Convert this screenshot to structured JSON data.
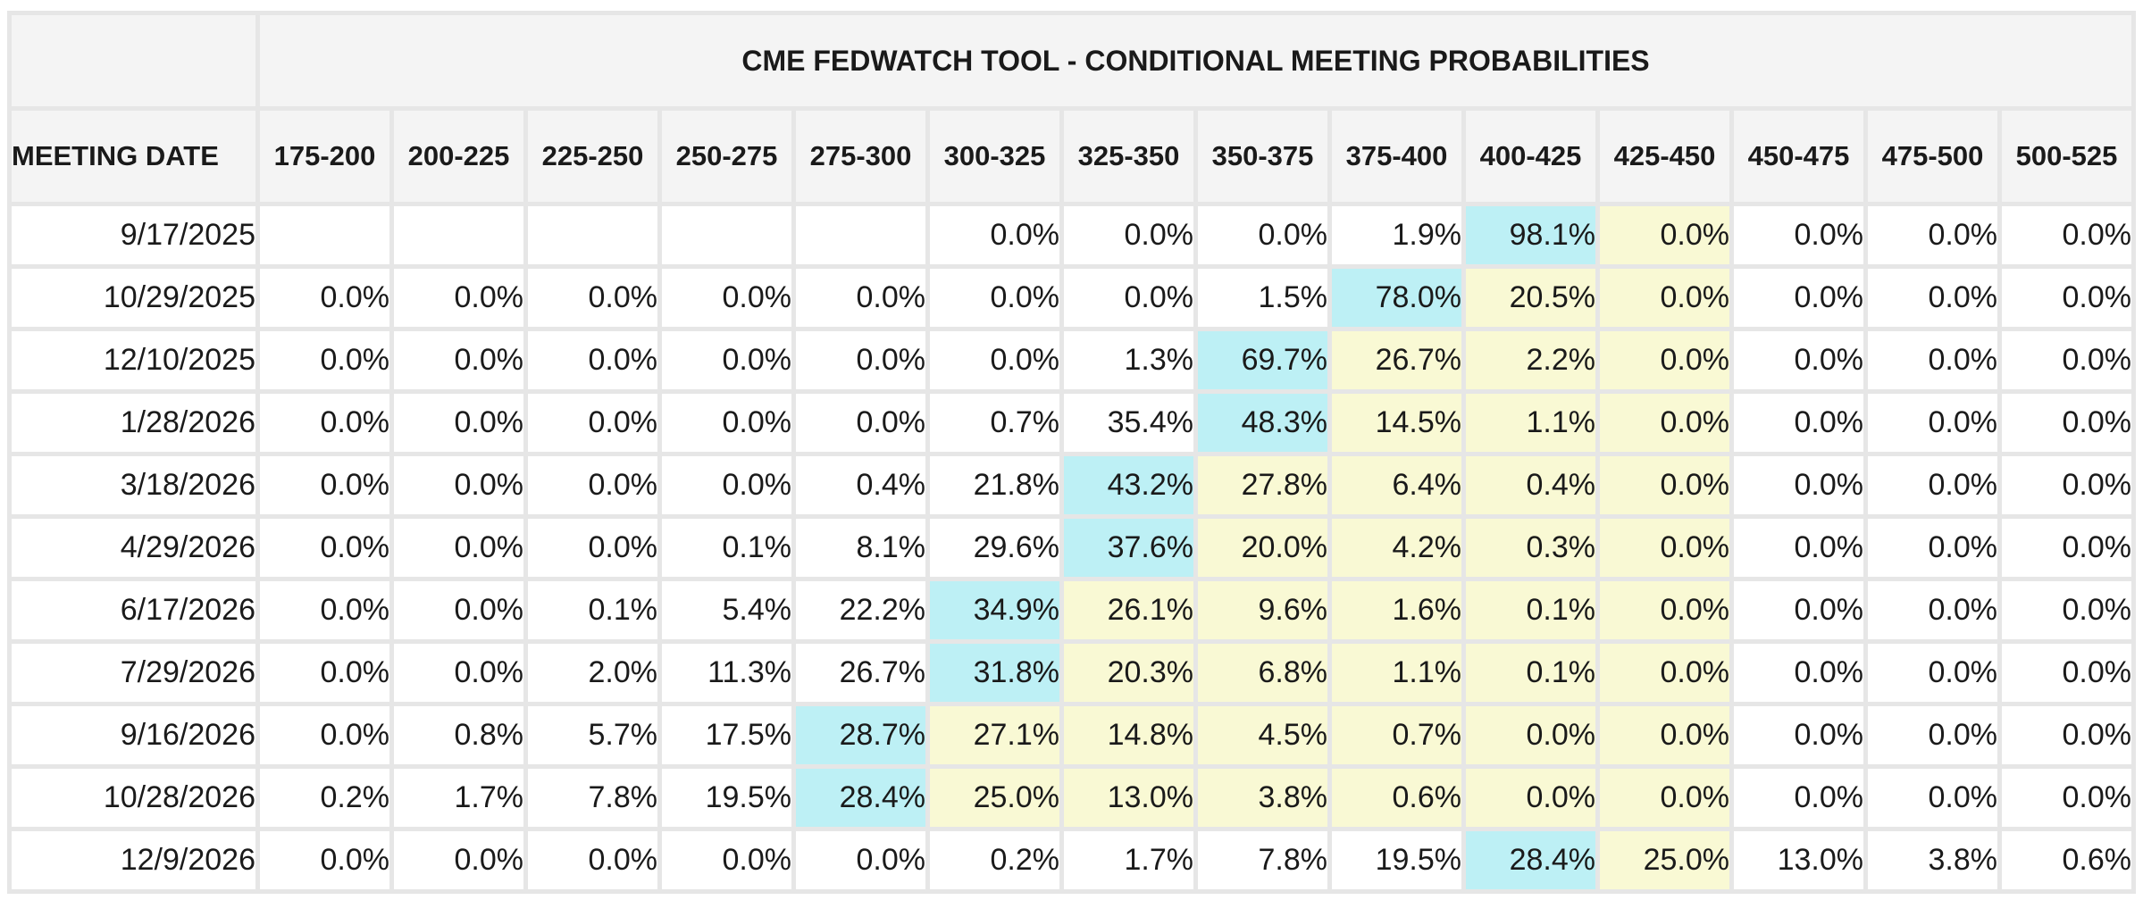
{
  "chart_data": {
    "type": "table",
    "title": "CME FEDWATCH TOOL - CONDITIONAL MEETING PROBABILITIES",
    "row_header_label": "MEETING DATE",
    "columns": [
      "175-200",
      "200-225",
      "225-250",
      "250-275",
      "275-300",
      "300-325",
      "325-350",
      "350-375",
      "375-400",
      "400-425",
      "425-450",
      "450-475",
      "475-500",
      "500-525"
    ],
    "current_range_column": "425-450",
    "colors": {
      "most_likely_highlight": "#bdf0f5",
      "above_most_likely_highlight": "#f9f9d4",
      "header_background": "#f4f4f4",
      "grid": "#e6e6e6"
    },
    "rows": [
      {
        "date": "9/17/2025",
        "values": [
          "",
          "",
          "",
          "",
          "",
          "0.0%",
          "0.0%",
          "0.0%",
          "1.9%",
          "98.1%",
          "0.0%",
          "0.0%",
          "0.0%",
          "0.0%"
        ],
        "max_index": 9
      },
      {
        "date": "10/29/2025",
        "values": [
          "0.0%",
          "0.0%",
          "0.0%",
          "0.0%",
          "0.0%",
          "0.0%",
          "0.0%",
          "1.5%",
          "78.0%",
          "20.5%",
          "0.0%",
          "0.0%",
          "0.0%",
          "0.0%"
        ],
        "max_index": 8
      },
      {
        "date": "12/10/2025",
        "values": [
          "0.0%",
          "0.0%",
          "0.0%",
          "0.0%",
          "0.0%",
          "0.0%",
          "1.3%",
          "69.7%",
          "26.7%",
          "2.2%",
          "0.0%",
          "0.0%",
          "0.0%",
          "0.0%"
        ],
        "max_index": 7
      },
      {
        "date": "1/28/2026",
        "values": [
          "0.0%",
          "0.0%",
          "0.0%",
          "0.0%",
          "0.0%",
          "0.7%",
          "35.4%",
          "48.3%",
          "14.5%",
          "1.1%",
          "0.0%",
          "0.0%",
          "0.0%",
          "0.0%"
        ],
        "max_index": 7
      },
      {
        "date": "3/18/2026",
        "values": [
          "0.0%",
          "0.0%",
          "0.0%",
          "0.0%",
          "0.4%",
          "21.8%",
          "43.2%",
          "27.8%",
          "6.4%",
          "0.4%",
          "0.0%",
          "0.0%",
          "0.0%",
          "0.0%"
        ],
        "max_index": 6
      },
      {
        "date": "4/29/2026",
        "values": [
          "0.0%",
          "0.0%",
          "0.0%",
          "0.1%",
          "8.1%",
          "29.6%",
          "37.6%",
          "20.0%",
          "4.2%",
          "0.3%",
          "0.0%",
          "0.0%",
          "0.0%",
          "0.0%"
        ],
        "max_index": 6
      },
      {
        "date": "6/17/2026",
        "values": [
          "0.0%",
          "0.0%",
          "0.1%",
          "5.4%",
          "22.2%",
          "34.9%",
          "26.1%",
          "9.6%",
          "1.6%",
          "0.1%",
          "0.0%",
          "0.0%",
          "0.0%",
          "0.0%"
        ],
        "max_index": 5
      },
      {
        "date": "7/29/2026",
        "values": [
          "0.0%",
          "0.0%",
          "2.0%",
          "11.3%",
          "26.7%",
          "31.8%",
          "20.3%",
          "6.8%",
          "1.1%",
          "0.1%",
          "0.0%",
          "0.0%",
          "0.0%",
          "0.0%"
        ],
        "max_index": 5
      },
      {
        "date": "9/16/2026",
        "values": [
          "0.0%",
          "0.8%",
          "5.7%",
          "17.5%",
          "28.7%",
          "27.1%",
          "14.8%",
          "4.5%",
          "0.7%",
          "0.0%",
          "0.0%",
          "0.0%",
          "0.0%",
          "0.0%"
        ],
        "max_index": 4
      },
      {
        "date": "10/28/2026",
        "values": [
          "0.2%",
          "1.7%",
          "7.8%",
          "19.5%",
          "28.4%",
          "25.0%",
          "13.0%",
          "3.8%",
          "0.6%",
          "0.0%",
          "0.0%",
          "0.0%",
          "0.0%",
          "0.0%"
        ],
        "max_index": 4
      },
      {
        "date": "12/9/2026",
        "values": [
          "0.0%",
          "0.0%",
          "0.0%",
          "0.0%",
          "0.0%",
          "0.2%",
          "1.7%",
          "7.8%",
          "19.5%",
          "28.4%",
          "25.0%",
          "13.0%",
          "3.8%",
          "0.6%"
        ],
        "max_index": 9
      }
    ]
  }
}
